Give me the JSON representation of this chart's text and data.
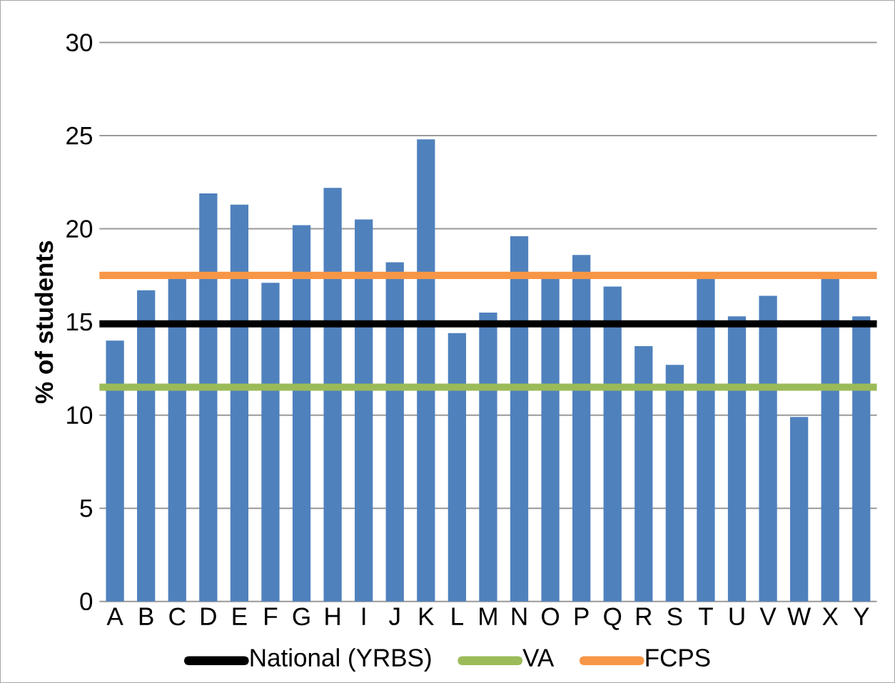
{
  "chart_data": {
    "type": "bar",
    "ylabel": "% of students",
    "categories": [
      "A",
      "B",
      "C",
      "D",
      "E",
      "F",
      "G",
      "H",
      "I",
      "J",
      "K",
      "L",
      "M",
      "N",
      "O",
      "P",
      "Q",
      "R",
      "S",
      "T",
      "U",
      "V",
      "W",
      "X",
      "Y"
    ],
    "values": [
      14.0,
      16.7,
      17.3,
      21.9,
      21.3,
      17.1,
      20.2,
      22.2,
      20.5,
      18.2,
      24.8,
      14.4,
      15.5,
      19.6,
      17.3,
      18.6,
      16.9,
      13.7,
      12.7,
      17.3,
      15.3,
      16.4,
      9.9,
      17.3,
      15.3
    ],
    "color": "#4f81bd",
    "ylim": [
      0,
      30
    ],
    "yticks": [
      0,
      5,
      10,
      15,
      20,
      25,
      30
    ],
    "grid": "y",
    "ref_lines": [
      {
        "axis": "y",
        "value": 14.9,
        "label": "National (YRBS)",
        "color": "#000000"
      },
      {
        "axis": "y",
        "value": 11.5,
        "label": "VA",
        "color": "#9bbb59"
      },
      {
        "axis": "y",
        "value": 17.5,
        "label": "FCPS",
        "color": "#f79646"
      }
    ],
    "legend": "bottom"
  }
}
